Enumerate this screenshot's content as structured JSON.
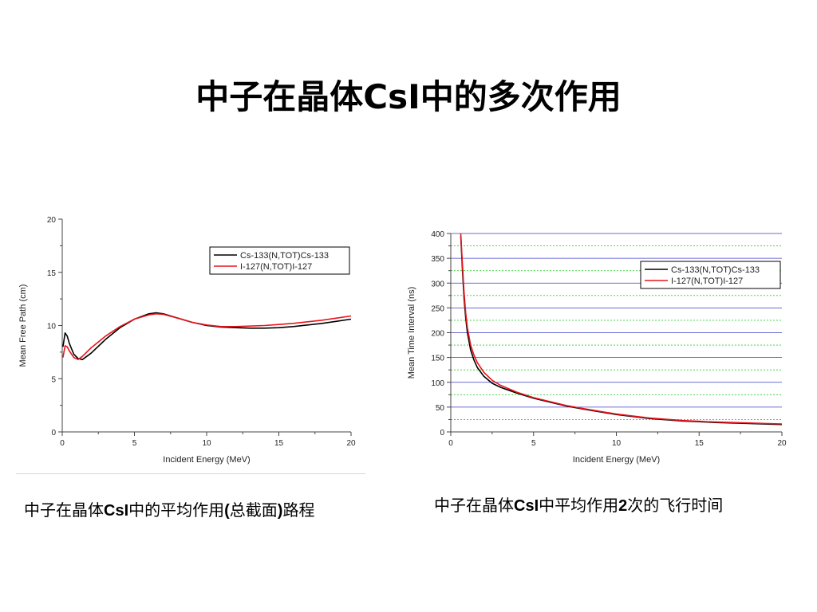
{
  "slide": {
    "title": "中子在晶体CsI中的多次作用",
    "colors": {
      "cs133": "#000000",
      "i127": "#e8141b",
      "hgrid": "#3c3cc8",
      "hgrid_minor": "#33cc33"
    }
  },
  "captions": {
    "left": [
      "中子在晶体",
      "CsI",
      "中的平均作用",
      "(",
      "总截面",
      ")",
      "路程"
    ],
    "right": [
      "中子在晶体",
      "CsI",
      "中平均作用",
      "2",
      "次的飞行时间"
    ]
  },
  "chart_data": [
    {
      "type": "line",
      "xlabel": "Incident Energy (MeV)",
      "ylabel": "Mean Free Path (cm)",
      "xlim": [
        0,
        20
      ],
      "ylim": [
        0,
        20
      ],
      "xticks": [
        0,
        5,
        10,
        15,
        20
      ],
      "yticks": [
        0,
        5,
        10,
        15,
        20
      ],
      "grid": false,
      "legend_position": "top-right",
      "series": [
        {
          "name": "Cs-133(N,TOT)Cs-133",
          "color": "#000000",
          "x": [
            0.05,
            0.2,
            0.35,
            0.5,
            0.8,
            1.1,
            1.4,
            2,
            3,
            4,
            5,
            6,
            6.5,
            7,
            8,
            9,
            10,
            11,
            12,
            13,
            14,
            15,
            16,
            17,
            18,
            19,
            20
          ],
          "y": [
            8.0,
            9.3,
            9.0,
            8.3,
            7.3,
            6.9,
            6.8,
            7.4,
            8.7,
            9.8,
            10.6,
            11.1,
            11.2,
            11.1,
            10.7,
            10.3,
            10.0,
            9.85,
            9.8,
            9.75,
            9.75,
            9.8,
            9.9,
            10.05,
            10.2,
            10.4,
            10.6
          ]
        },
        {
          "name": "I-127(N,TOT)I-127",
          "color": "#e8141b",
          "x": [
            0.05,
            0.2,
            0.35,
            0.5,
            0.8,
            1.1,
            1.4,
            2,
            3,
            4,
            5,
            6,
            6.5,
            7,
            8,
            9,
            10,
            11,
            12,
            13,
            14,
            15,
            16,
            17,
            18,
            19,
            20
          ],
          "y": [
            7.0,
            8.1,
            8.0,
            7.6,
            7.0,
            6.8,
            7.1,
            7.9,
            9.0,
            9.9,
            10.6,
            11.0,
            11.1,
            11.05,
            10.7,
            10.3,
            10.05,
            9.9,
            9.9,
            9.95,
            10.0,
            10.1,
            10.2,
            10.35,
            10.5,
            10.7,
            10.9
          ]
        }
      ]
    },
    {
      "type": "line",
      "xlabel": "Incident Energy (MeV)",
      "ylabel": "Mean Time Interval (ns)",
      "xlim": [
        0,
        20
      ],
      "ylim": [
        0,
        400
      ],
      "xticks": [
        0,
        5,
        10,
        15,
        20
      ],
      "yticks": [
        0,
        50,
        100,
        150,
        200,
        250,
        300,
        350,
        400
      ],
      "grid": true,
      "legend_position": "top-right",
      "series": [
        {
          "name": "Cs-133(N,TOT)Cs-133",
          "color": "#000000",
          "x": [
            0.6,
            0.7,
            0.8,
            0.9,
            1.0,
            1.2,
            1.4,
            1.6,
            2,
            2.5,
            3,
            4,
            5,
            6,
            7,
            8,
            10,
            12,
            14,
            16,
            18,
            20
          ],
          "y": [
            395,
            330,
            270,
            230,
            200,
            165,
            145,
            130,
            112,
            98,
            90,
            78,
            68,
            60,
            52,
            46,
            35,
            27,
            22,
            19,
            17,
            15
          ]
        },
        {
          "name": "I-127(N,TOT)I-127",
          "color": "#e8141b",
          "x": [
            0.6,
            0.7,
            0.8,
            0.9,
            1.0,
            1.2,
            1.4,
            1.6,
            2,
            2.5,
            3,
            4,
            5,
            6,
            7,
            8,
            10,
            12,
            14,
            16,
            18,
            20
          ],
          "y": [
            400,
            340,
            282,
            240,
            210,
            175,
            155,
            140,
            120,
            104,
            94,
            80,
            69,
            61,
            53,
            47,
            36,
            28,
            23,
            20,
            18,
            16
          ]
        }
      ]
    }
  ]
}
